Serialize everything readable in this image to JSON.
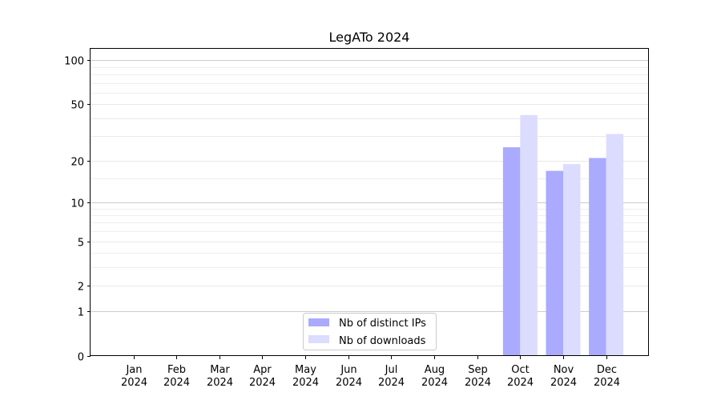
{
  "chart_data": {
    "type": "bar",
    "title": "LegATo 2024",
    "xlabel": "",
    "ylabel": "",
    "yscale": "symlog",
    "ylim": [
      0,
      120
    ],
    "grid": true,
    "legend_position": "lower-center",
    "categories": [
      [
        "Jan",
        "2024"
      ],
      [
        "Feb",
        "2024"
      ],
      [
        "Mar",
        "2024"
      ],
      [
        "Apr",
        "2024"
      ],
      [
        "May",
        "2024"
      ],
      [
        "Jun",
        "2024"
      ],
      [
        "Jul",
        "2024"
      ],
      [
        "Aug",
        "2024"
      ],
      [
        "Sep",
        "2024"
      ],
      [
        "Oct",
        "2024"
      ],
      [
        "Nov",
        "2024"
      ],
      [
        "Dec",
        "2024"
      ]
    ],
    "yticks": [
      {
        "value": 0,
        "label": "0"
      },
      {
        "value": 1,
        "label": "1"
      },
      {
        "value": 2,
        "label": "2"
      },
      {
        "value": 5,
        "label": "5"
      },
      {
        "value": 10,
        "label": "10"
      },
      {
        "value": 20,
        "label": "20"
      },
      {
        "value": 50,
        "label": "50"
      },
      {
        "value": 100,
        "label": "100"
      }
    ],
    "series": [
      {
        "name": "Nb of distinct IPs",
        "color": "#aaaaff",
        "values": [
          0,
          0,
          0,
          0,
          0,
          0,
          0,
          0,
          0,
          25,
          17,
          21
        ]
      },
      {
        "name": "Nb of downloads",
        "color": "#dcdcff",
        "values": [
          0,
          0,
          0,
          0,
          0,
          0,
          0,
          0,
          0,
          42,
          19,
          31
        ]
      }
    ]
  }
}
